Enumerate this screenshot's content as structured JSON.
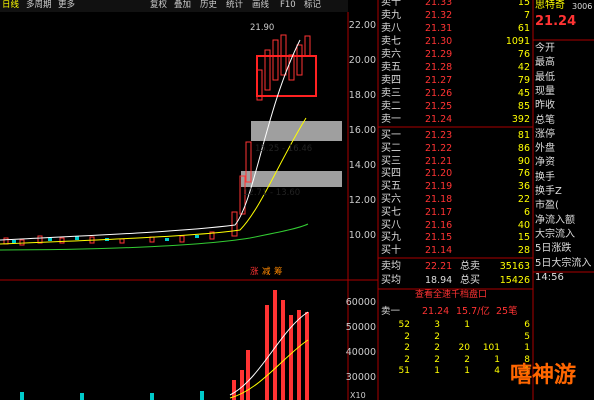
{
  "toolbar": [
    "日线",
    "多周期",
    "更多",
    "复权",
    "叠加",
    "历史",
    "统计",
    "画线",
    "F10",
    "标记"
  ],
  "price_axis": [
    "22.00",
    "20.00",
    "18.00",
    "16.00",
    "14.00",
    "12.00",
    "10.00"
  ],
  "volume_axis": [
    "60000",
    "50000",
    "40000",
    "30000"
  ],
  "volume_unit": "X10",
  "annotations": {
    "high": "21.90",
    "range1": "15.25 - 16.46",
    "range2": "12.71 - 13.60",
    "markers": [
      "涨",
      "减",
      "筹"
    ]
  },
  "order_book": {
    "asks": [
      {
        "label": "卖十",
        "price": "21.33",
        "volume": "15"
      },
      {
        "label": "卖九",
        "price": "21.32",
        "volume": "7"
      },
      {
        "label": "卖八",
        "price": "21.31",
        "volume": "61"
      },
      {
        "label": "卖七",
        "price": "21.30",
        "volume": "1091"
      },
      {
        "label": "卖六",
        "price": "21.29",
        "volume": "76"
      },
      {
        "label": "卖五",
        "price": "21.28",
        "volume": "42"
      },
      {
        "label": "卖四",
        "price": "21.27",
        "volume": "79"
      },
      {
        "label": "卖三",
        "price": "21.26",
        "volume": "45"
      },
      {
        "label": "卖二",
        "price": "21.25",
        "volume": "85"
      },
      {
        "label": "卖一",
        "price": "21.24",
        "volume": "392"
      }
    ],
    "bids": [
      {
        "label": "买一",
        "price": "21.23",
        "volume": "81"
      },
      {
        "label": "买二",
        "price": "21.22",
        "volume": "86"
      },
      {
        "label": "买三",
        "price": "21.21",
        "volume": "90"
      },
      {
        "label": "买四",
        "price": "21.20",
        "volume": "76"
      },
      {
        "label": "买五",
        "price": "21.19",
        "volume": "36"
      },
      {
        "label": "买六",
        "price": "21.18",
        "volume": "22"
      },
      {
        "label": "买七",
        "price": "21.17",
        "volume": "6"
      },
      {
        "label": "买八",
        "price": "21.16",
        "volume": "40"
      },
      {
        "label": "买九",
        "price": "21.15",
        "volume": "15"
      },
      {
        "label": "买十",
        "price": "21.14",
        "volume": "28"
      }
    ],
    "summary": [
      {
        "label": "卖均",
        "price": "22.21",
        "name": "总卖",
        "volume": "35163"
      },
      {
        "label": "买均",
        "price": "18.94",
        "name": "总买",
        "volume": "15426"
      }
    ],
    "link": "查看全速千档盘口",
    "queue_header": [
      "卖一",
      "21.24",
      "15.7/亿",
      "25笔"
    ],
    "queue_rows": [
      [
        "52",
        "3",
        "1",
        "",
        "6"
      ],
      [
        "2",
        "2",
        "",
        "",
        "5"
      ],
      [
        "2",
        "2",
        "20",
        "101",
        "1"
      ],
      [
        "2",
        "2",
        "2",
        "1",
        "8"
      ],
      [
        "51",
        "1",
        "1",
        "4",
        "1"
      ]
    ]
  },
  "quote": {
    "name": "思特奇",
    "code": "3006",
    "price": "21.24",
    "fields": [
      "今开",
      "最高",
      "最低",
      "现量",
      "昨收",
      "总笔",
      "涨停",
      "外盘",
      "净资",
      "换手",
      "换手Z",
      "市盈(",
      "净流入额",
      "大宗流入",
      "5日涨跌",
      "5日大宗流入",
      "14:56"
    ]
  },
  "watermark": "嘻神游"
}
